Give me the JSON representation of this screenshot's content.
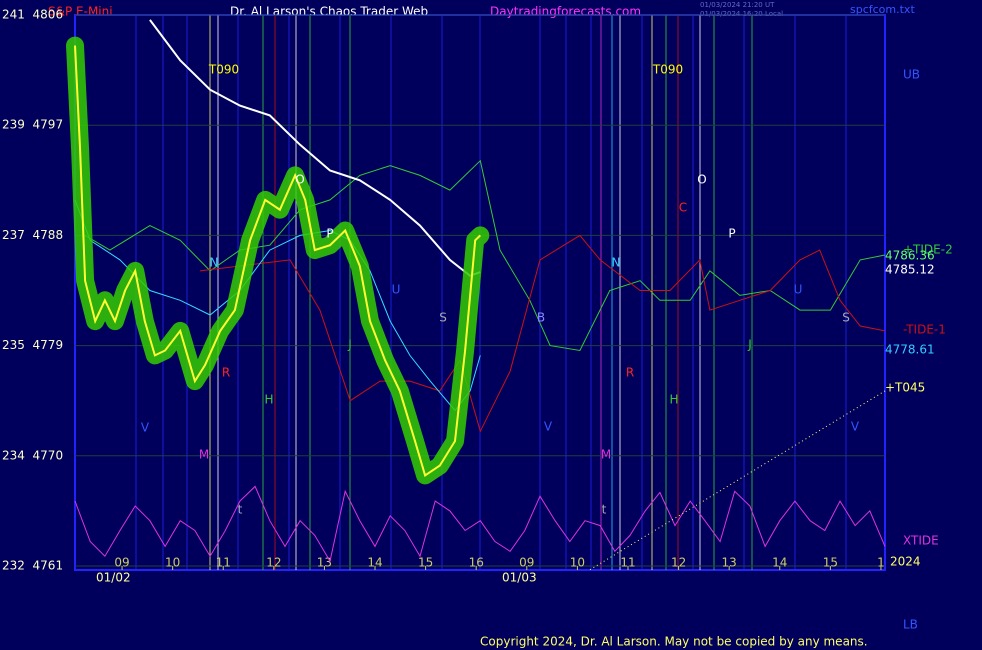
{
  "chart_data": {
    "type": "line",
    "title": "Dr. Al Larson's Chaos Trader Web",
    "instrument": "S&P E-Mini",
    "site": "Daytradingforecasts.com",
    "file": "spcfcom.txt",
    "timestamps": [
      "01/03/2024 21:20 UT",
      "01/03/2024 16:20 Local"
    ],
    "copyright": "Copyright 2024, Dr. Al Larson. May not be copied by any means.",
    "upper_band": "UB",
    "lower_band": "LB",
    "year": "2024",
    "dates": [
      "01/02",
      "01/03"
    ],
    "background": "#00005c",
    "grid": true,
    "grid_color": "#1f3f3f",
    "xlim": [
      -0.93,
      15.08
    ],
    "xticks": [
      {
        "value": 0,
        "label": "09"
      },
      {
        "value": 1,
        "label": "10"
      },
      {
        "value": 2,
        "label": "11"
      },
      {
        "value": 3,
        "label": "12"
      },
      {
        "value": 4,
        "label": "13"
      },
      {
        "value": 5,
        "label": "14"
      },
      {
        "value": 6,
        "label": "15"
      },
      {
        "value": 7,
        "label": "16"
      },
      {
        "value": 8,
        "label": "09"
      },
      {
        "value": 9,
        "label": "10"
      },
      {
        "value": 10,
        "label": "11"
      },
      {
        "value": 11,
        "label": "12"
      },
      {
        "value": 12,
        "label": "13"
      },
      {
        "value": 13,
        "label": "14"
      },
      {
        "value": 14,
        "label": "15"
      },
      {
        "value": 15,
        "label": "1"
      }
    ],
    "ylim": [
      4761,
      4806
    ],
    "yticks": [
      {
        "value": 4806,
        "label": "241  4806"
      },
      {
        "value": 4797,
        "label": "239  4797"
      },
      {
        "value": 4788,
        "label": "237  4788"
      },
      {
        "value": 4779,
        "label": "235  4779"
      },
      {
        "value": 4770,
        "label": "234  4770"
      },
      {
        "value": 4761,
        "label": "232  4761"
      }
    ],
    "price_labels": [
      4786.36,
      4785.12,
      4778.61
    ],
    "price_label_colors": [
      "#66ff66",
      "#ffffff",
      "#33ccff"
    ],
    "series": [
      {
        "color": "#ffff33",
        "glow": "#33cc00",
        "x": [
          -0.93,
          -0.83,
          -0.73,
          -0.53,
          -0.34,
          -0.14,
          0.06,
          0.26,
          0.45,
          0.65,
          0.85,
          1.15,
          1.44,
          1.64,
          1.94,
          2.23,
          2.53,
          2.83,
          3.12,
          3.42,
          3.62,
          3.81,
          4.11,
          4.41,
          4.7,
          4.9,
          5.2,
          5.49,
          5.79,
          5.99,
          6.28,
          6.58,
          6.78,
          6.98,
          7.08
        ],
        "values": [
          4803.5,
          4795,
          4784.3,
          4781,
          4782.7,
          4781,
          4783.5,
          4785.1,
          4781,
          4778.2,
          4778.6,
          4780.2,
          4776.1,
          4777.4,
          4780.2,
          4781.9,
          4787.6,
          4790.9,
          4790.1,
          4792.9,
          4790.9,
          4786.8,
          4787.2,
          4788.4,
          4785.5,
          4781,
          4777.8,
          4775.3,
          4771.2,
          4768.4,
          4769.2,
          4771.2,
          4778.6,
          4787.6,
          4788
        ]
      },
      {
        "color": "#33ddff",
        "x": [
          -0.93,
          -0.63,
          -0.04,
          0.55,
          1.15,
          1.74,
          2.33,
          2.92,
          3.52,
          4.11,
          4.51,
          4.9,
          5.3,
          5.69,
          6.09,
          6.58,
          6.88,
          7.08
        ],
        "values": [
          4790.9,
          4787.6,
          4786,
          4783.5,
          4782.7,
          4781.5,
          4783.5,
          4786.8,
          4788,
          4788.4,
          4787.6,
          4785.1,
          4781,
          4778.2,
          4776.1,
          4773.7,
          4775.3,
          4778.2
        ]
      },
      {
        "color": "#ffffff",
        "x": [
          0.55,
          1.15,
          1.74,
          2.33,
          2.92,
          3.52,
          4.11,
          4.7,
          5.3,
          5.89,
          6.48,
          6.88,
          7.08
        ],
        "values": [
          4805.6,
          4802.3,
          4799.9,
          4798.6,
          4797.8,
          4795.4,
          4793.3,
          4792.5,
          4790.9,
          4788.8,
          4786,
          4784.7,
          4785
        ]
      },
      {
        "name": "+TIDE-2",
        "color": "#33cc33",
        "x": [
          -0.73,
          -0.24,
          0.55,
          1.15,
          1.74,
          2.33,
          2.92,
          3.52,
          4.11,
          4.7,
          5.3,
          5.89,
          6.48,
          7.08,
          7.47,
          8.06,
          8.46,
          9.05,
          9.64,
          10.24,
          10.63,
          11.23,
          11.62,
          12.21,
          12.81,
          13.4,
          14,
          14.59,
          15.08
        ],
        "values": [
          4788,
          4786.8,
          4788.8,
          4787.6,
          4785.1,
          4786.8,
          4787.2,
          4790.1,
          4790.9,
          4792.9,
          4793.7,
          4792.9,
          4791.7,
          4794.1,
          4786.8,
          4782.7,
          4779,
          4778.6,
          4783.5,
          4784.3,
          4782.7,
          4782.7,
          4785.1,
          4783.1,
          4783.5,
          4781.9,
          4781.9,
          4786,
          4786.4
        ]
      },
      {
        "name": "-TIDE-1",
        "color": "#cc1111",
        "x": [
          1.54,
          2.33,
          3.32,
          3.91,
          4.51,
          5.1,
          5.69,
          6.28,
          6.68,
          7.08,
          7.67,
          8.26,
          9.05,
          9.45,
          10.24,
          10.83,
          11.42,
          11.62,
          12.21,
          12.81,
          13.4,
          13.79,
          14.19,
          14.59,
          15.08
        ],
        "values": [
          4785.1,
          4785.5,
          4786,
          4781.9,
          4774.5,
          4776.1,
          4776.1,
          4775.3,
          4777.8,
          4772,
          4776.9,
          4786,
          4788,
          4786,
          4783.5,
          4783.5,
          4786,
          4781.9,
          4782.7,
          4783.5,
          4786,
          4786.8,
          4782.7,
          4780.6,
          4780.2
        ]
      },
      {
        "name": "XTIDE",
        "color": "#dd33dd",
        "x": [
          -0.93,
          -0.63,
          -0.34,
          -0.04,
          0.26,
          0.55,
          0.85,
          1.15,
          1.44,
          1.74,
          2.04,
          2.33,
          2.63,
          2.92,
          3.22,
          3.52,
          3.81,
          4.11,
          4.41,
          4.7,
          5,
          5.3,
          5.59,
          5.89,
          6.19,
          6.48,
          6.78,
          7.08,
          7.37,
          7.67,
          7.96,
          8.26,
          8.56,
          8.85,
          9.15,
          9.45,
          9.74,
          10.04,
          10.34,
          10.63,
          10.93,
          11.23,
          11.52,
          11.82,
          12.11,
          12.41,
          12.71,
          13,
          13.3,
          13.6,
          13.89,
          14.19,
          14.49,
          14.78,
          15.08
        ],
        "values": [
          4766.3,
          4763,
          4761.8,
          4763.9,
          4765.9,
          4764.7,
          4762.6,
          4764.7,
          4763.9,
          4761.8,
          4763.9,
          4766.3,
          4767.5,
          4764.7,
          4762.6,
          4764.7,
          4763.5,
          4761.4,
          4767.1,
          4764.7,
          4762.6,
          4765.1,
          4763.9,
          4761.8,
          4766.3,
          4765.5,
          4763.9,
          4764.7,
          4763,
          4762.2,
          4763.9,
          4766.7,
          4764.7,
          4763,
          4764.7,
          4764.3,
          4762.2,
          4763.5,
          4765.5,
          4767,
          4764.3,
          4766.3,
          4764.7,
          4763,
          4767.1,
          4765.9,
          4762.6,
          4764.7,
          4766.3,
          4764.7,
          4763.9,
          4766.3,
          4764.3,
          4765.5,
          4762.6
        ]
      },
      {
        "name": "+T045",
        "color": "#ffff66",
        "style": "dotted",
        "x": [
          9.25,
          15.08
        ],
        "values": [
          4760.7,
          4775.3
        ]
      }
    ],
    "annotations": [
      {
        "text": "T090",
        "color": "#ffff00"
      },
      {
        "text": "T090",
        "color": "#ffff00"
      },
      {
        "text": "N",
        "color": "#33ccff"
      },
      {
        "text": "N",
        "color": "#33ccff"
      },
      {
        "text": "O",
        "color": "#ffffff"
      },
      {
        "text": "O",
        "color": "#ffffff"
      },
      {
        "text": "C",
        "color": "#ff2222"
      },
      {
        "text": "P",
        "color": "#ffffff"
      },
      {
        "text": "P",
        "color": "#ffffff"
      },
      {
        "text": "B",
        "color": "#8888ff"
      },
      {
        "text": "R",
        "color": "#ff2222"
      },
      {
        "text": "R",
        "color": "#ff2222"
      },
      {
        "text": "H",
        "color": "#33cc33"
      },
      {
        "text": "H",
        "color": "#33cc33"
      },
      {
        "text": "J",
        "color": "#33cc33"
      },
      {
        "text": "J",
        "color": "#33cc33"
      },
      {
        "text": "M",
        "color": "#dd33dd"
      },
      {
        "text": "M",
        "color": "#dd33dd"
      },
      {
        "text": "V",
        "color": "#3355ff"
      },
      {
        "text": "V",
        "color": "#3355ff"
      },
      {
        "text": "V",
        "color": "#3355ff"
      },
      {
        "text": "U",
        "color": "#3355ff"
      },
      {
        "text": "U",
        "color": "#3355ff"
      },
      {
        "text": "S",
        "color": "#aaaaaa"
      },
      {
        "text": "S",
        "color": "#aaaaaa"
      },
      {
        "text": "t",
        "color": "#aaaaaa"
      },
      {
        "text": "t",
        "color": "#aaaaaa"
      }
    ]
  }
}
